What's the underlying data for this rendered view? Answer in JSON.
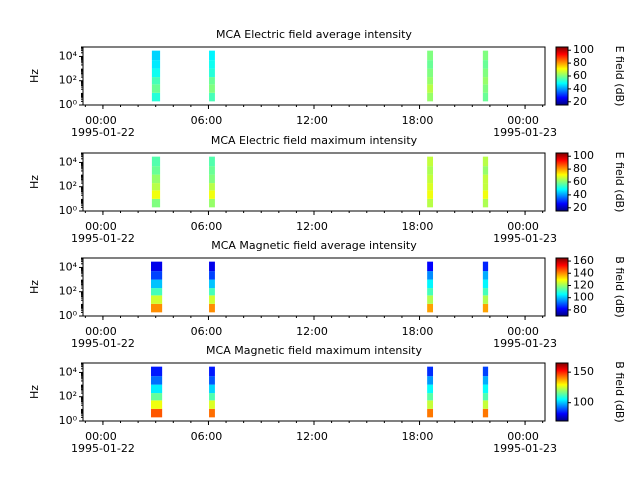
{
  "chart_data": [
    {
      "type": "heatmap",
      "title": "MCA  Electric field average intensity",
      "ylabel": "Hz",
      "zlabel": "E field (dB)",
      "log_y": true,
      "colormap": "jet",
      "ylim": [
        1,
        60000
      ],
      "yticks": [
        {
          "value": 1,
          "label": "10⁰"
        },
        {
          "value": 100,
          "label": "10²"
        },
        {
          "value": 10000,
          "label": "10⁴"
        }
      ],
      "xlim": [
        "1995-01-21T22:52",
        "1995-01-23T01:08"
      ],
      "xticks": [
        {
          "value": "1995-01-22T00:00",
          "label": [
            "00:00",
            "1995-01-22"
          ]
        },
        {
          "value": "1995-01-22T06:00",
          "label": [
            "06:00"
          ]
        },
        {
          "value": "1995-01-22T12:00",
          "label": [
            "12:00"
          ]
        },
        {
          "value": "1995-01-22T18:00",
          "label": [
            "18:00"
          ]
        },
        {
          "value": "1995-01-23T00:00",
          "label": [
            "00:00",
            "1995-01-23"
          ]
        }
      ],
      "freq_bins": [
        2,
        10,
        50,
        200,
        1000,
        5000,
        30000
      ],
      "segments": [
        {
          "start": "1995-01-22T02:47",
          "end": "1995-01-22T03:15",
          "values": [
            52,
            58,
            55,
            50,
            47,
            45
          ]
        },
        {
          "start": "1995-01-22T06:02",
          "end": "1995-01-22T06:22",
          "values": [
            55,
            60,
            58,
            52,
            50,
            48
          ]
        },
        {
          "start": "1995-01-22T18:26",
          "end": "1995-01-22T18:46",
          "values": [
            62,
            65,
            62,
            60,
            58,
            60
          ]
        },
        {
          "start": "1995-01-22T21:36",
          "end": "1995-01-22T21:54",
          "values": [
            58,
            60,
            62,
            60,
            58,
            60
          ]
        }
      ],
      "zlim": [
        15,
        105
      ],
      "zticks": [
        20,
        40,
        60,
        80,
        100
      ]
    },
    {
      "type": "heatmap",
      "title": "MCA  Electric field maximum intensity",
      "ylabel": "Hz",
      "zlabel": "E field (dB)",
      "log_y": true,
      "colormap": "jet",
      "ylim": [
        1,
        60000
      ],
      "yticks": [
        {
          "value": 1,
          "label": "10⁰"
        },
        {
          "value": 100,
          "label": "10²"
        },
        {
          "value": 10000,
          "label": "10⁴"
        }
      ],
      "xlim": [
        "1995-01-21T22:52",
        "1995-01-23T01:08"
      ],
      "xticks": [
        {
          "value": "1995-01-22T00:00",
          "label": [
            "00:00",
            "1995-01-22"
          ]
        },
        {
          "value": "1995-01-22T06:00",
          "label": [
            "06:00"
          ]
        },
        {
          "value": "1995-01-22T12:00",
          "label": [
            "12:00"
          ]
        },
        {
          "value": "1995-01-22T18:00",
          "label": [
            "18:00"
          ]
        },
        {
          "value": "1995-01-23T00:00",
          "label": [
            "00:00",
            "1995-01-23"
          ]
        }
      ],
      "freq_bins": [
        2,
        10,
        50,
        200,
        1000,
        5000,
        30000
      ],
      "segments": [
        {
          "start": "1995-01-22T02:47",
          "end": "1995-01-22T03:15",
          "values": [
            60,
            70,
            65,
            62,
            58,
            56
          ]
        },
        {
          "start": "1995-01-22T06:02",
          "end": "1995-01-22T06:22",
          "values": [
            62,
            70,
            65,
            60,
            58,
            56
          ]
        },
        {
          "start": "1995-01-22T18:26",
          "end": "1995-01-22T18:46",
          "values": [
            65,
            70,
            68,
            66,
            64,
            66
          ]
        },
        {
          "start": "1995-01-22T21:36",
          "end": "1995-01-22T21:54",
          "values": [
            64,
            70,
            66,
            66,
            62,
            65
          ]
        }
      ],
      "zlim": [
        15,
        105
      ],
      "zticks": [
        20,
        40,
        60,
        80,
        100
      ]
    },
    {
      "type": "heatmap",
      "title": "MCA  Magnetic field average intensity",
      "ylabel": "Hz",
      "zlabel": "B field (dB)",
      "log_y": true,
      "colormap": "jet",
      "ylim": [
        1,
        60000
      ],
      "yticks": [
        {
          "value": 1,
          "label": "10⁰"
        },
        {
          "value": 100,
          "label": "10²"
        },
        {
          "value": 10000,
          "label": "10⁴"
        }
      ],
      "xlim": [
        "1995-01-21T22:52",
        "1995-01-23T01:08"
      ],
      "xticks": [
        {
          "value": "1995-01-22T00:00",
          "label": [
            "00:00",
            "1995-01-22"
          ]
        },
        {
          "value": "1995-01-22T06:00",
          "label": [
            "06:00"
          ]
        },
        {
          "value": "1995-01-22T12:00",
          "label": [
            "12:00"
          ]
        },
        {
          "value": "1995-01-22T18:00",
          "label": [
            "18:00"
          ]
        },
        {
          "value": "1995-01-23T00:00",
          "label": [
            "00:00",
            "1995-01-23"
          ]
        }
      ],
      "freq_bins": [
        2,
        10,
        50,
        200,
        1000,
        5000,
        30000
      ],
      "segments": [
        {
          "start": "1995-01-22T02:44",
          "end": "1995-01-22T03:22",
          "values": [
            140,
            125,
            112,
            100,
            88,
            80
          ]
        },
        {
          "start": "1995-01-22T06:02",
          "end": "1995-01-22T06:22",
          "values": [
            140,
            125,
            112,
            100,
            88,
            80
          ]
        },
        {
          "start": "1995-01-22T18:26",
          "end": "1995-01-22T18:46",
          "values": [
            138,
            122,
            112,
            105,
            95,
            82
          ]
        },
        {
          "start": "1995-01-22T21:36",
          "end": "1995-01-22T21:54",
          "values": [
            138,
            122,
            112,
            105,
            98,
            85
          ]
        }
      ],
      "zlim": [
        70,
        165
      ],
      "zticks": [
        80,
        100,
        120,
        140,
        160
      ]
    },
    {
      "type": "heatmap",
      "title": "MCA  Magnetic field maximum intensity",
      "ylabel": "Hz",
      "zlabel": "B field (dB)",
      "log_y": true,
      "colormap": "jet",
      "ylim": [
        1,
        60000
      ],
      "yticks": [
        {
          "value": 1,
          "label": "10⁰"
        },
        {
          "value": 100,
          "label": "10²"
        },
        {
          "value": 10000,
          "label": "10⁴"
        }
      ],
      "xlim": [
        "1995-01-21T22:52",
        "1995-01-23T01:08"
      ],
      "xticks": [
        {
          "value": "1995-01-22T00:00",
          "label": [
            "00:00",
            "1995-01-22"
          ]
        },
        {
          "value": "1995-01-22T06:00",
          "label": [
            "06:00"
          ]
        },
        {
          "value": "1995-01-22T12:00",
          "label": [
            "12:00"
          ]
        },
        {
          "value": "1995-01-22T18:00",
          "label": [
            "18:00"
          ]
        },
        {
          "value": "1995-01-23T00:00",
          "label": [
            "00:00",
            "1995-01-23"
          ]
        }
      ],
      "freq_bins": [
        2,
        10,
        50,
        200,
        1000,
        5000,
        30000
      ],
      "segments": [
        {
          "start": "1995-01-22T02:44",
          "end": "1995-01-22T03:22",
          "values": [
            145,
            128,
            115,
            104,
            92,
            84
          ]
        },
        {
          "start": "1995-01-22T06:02",
          "end": "1995-01-22T06:22",
          "values": [
            143,
            126,
            113,
            102,
            90,
            84
          ]
        },
        {
          "start": "1995-01-22T18:26",
          "end": "1995-01-22T18:46",
          "values": [
            142,
            124,
            114,
            106,
            96,
            86
          ]
        },
        {
          "start": "1995-01-22T21:36",
          "end": "1995-01-22T21:54",
          "values": [
            142,
            124,
            113,
            106,
            98,
            88
          ]
        }
      ],
      "zlim": [
        70,
        165
      ],
      "zticks": [
        100,
        150
      ]
    }
  ]
}
